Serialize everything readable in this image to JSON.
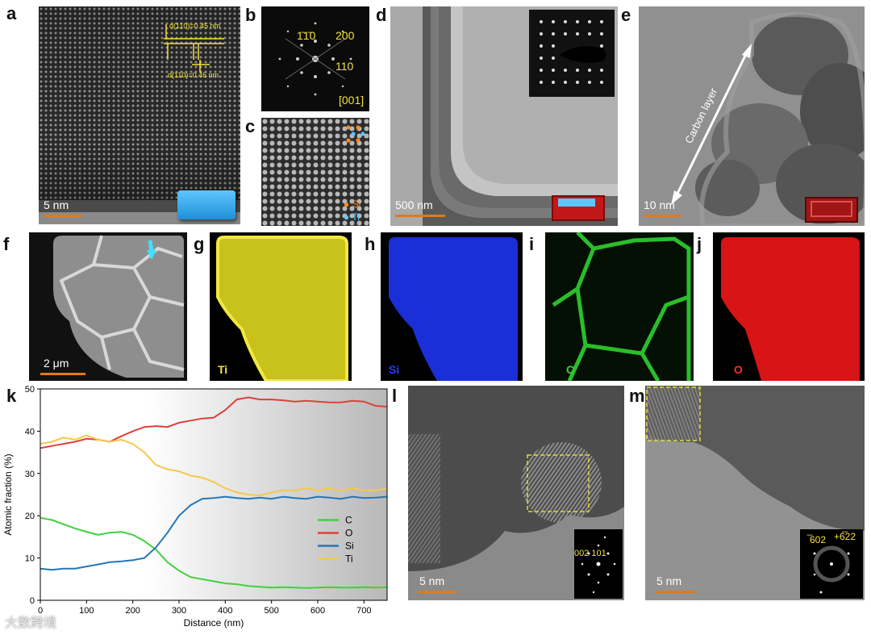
{
  "panels": {
    "a": {
      "label": "a",
      "scale": "5 nm",
      "d1": "d(110)=0.45 nm",
      "d2": "d(110)=0.46 nm"
    },
    "b": {
      "label": "b",
      "spot1": "1̄1̄0",
      "spot2": "200",
      "spot3": "110",
      "zone": "[001]"
    },
    "c": {
      "label": "c",
      "legend_si": "Si",
      "legend_ti": "Ti"
    },
    "d": {
      "label": "d",
      "scale": "500 nm"
    },
    "e": {
      "label": "e",
      "scale": "10 nm",
      "annotation": "Carbon layer"
    },
    "f": {
      "label": "f",
      "scale": "2 μm"
    },
    "g": {
      "label": "g",
      "element": "Ti"
    },
    "h": {
      "label": "h",
      "element": "Si"
    },
    "i": {
      "label": "i",
      "element": "C"
    },
    "j": {
      "label": "j",
      "element": "O"
    },
    "l": {
      "label": "l",
      "scale": "5 nm",
      "fft_label": "002 101"
    },
    "m": {
      "label": "m",
      "scale": "5 nm",
      "fft_label1": "̅602",
      "fft_label2": "+6̅22"
    }
  },
  "chart_label": "k",
  "watermark": "大数跨境",
  "colors": {
    "C": "#3ed13e",
    "O": "#e0403a",
    "Si": "#2577b5",
    "Ti": "#f5c84c",
    "scalebar": "#e07b1a"
  },
  "chart_data": {
    "type": "line",
    "xlabel": "Distance (nm)",
    "ylabel": "Atomic fraction (%)",
    "xlim": [
      0,
      750
    ],
    "ylim": [
      0,
      50
    ],
    "xticks": [
      0,
      100,
      200,
      300,
      400,
      500,
      600,
      700
    ],
    "yticks": [
      0,
      10,
      20,
      30,
      40,
      50
    ],
    "legend_position": "right-middle",
    "x": [
      0,
      25,
      50,
      75,
      100,
      125,
      150,
      175,
      200,
      225,
      250,
      275,
      300,
      325,
      350,
      375,
      400,
      425,
      450,
      475,
      500,
      525,
      550,
      575,
      600,
      625,
      650,
      675,
      700,
      725,
      750
    ],
    "series": [
      {
        "name": "C",
        "values": [
          19.5,
          19,
          18,
          17,
          16.2,
          15.5,
          16,
          16.2,
          15.5,
          14,
          12,
          9,
          7,
          5.5,
          5,
          4.5,
          4,
          3.8,
          3.4,
          3.2,
          3,
          3.1,
          3,
          2.9,
          3,
          3.1,
          3,
          3,
          3.1,
          3,
          3.1
        ]
      },
      {
        "name": "O",
        "values": [
          36,
          36.5,
          37,
          37.5,
          38.2,
          38,
          37.5,
          38.8,
          40,
          41,
          41.2,
          41,
          42,
          42.5,
          43,
          43.2,
          45,
          47.5,
          48,
          47.5,
          47.5,
          47.3,
          47,
          47.2,
          47,
          46.8,
          46.8,
          47.2,
          47,
          46,
          45.8
        ]
      },
      {
        "name": "Si",
        "values": [
          7.5,
          7.2,
          7.5,
          7.5,
          8,
          8.5,
          9,
          9.2,
          9.5,
          10,
          12.5,
          16,
          20,
          22.5,
          24,
          24.2,
          24.5,
          24.2,
          24,
          24.3,
          24,
          24.5,
          24.2,
          24,
          24.5,
          24.3,
          24,
          24.5,
          24.2,
          24.3,
          24.5
        ]
      },
      {
        "name": "Ti",
        "values": [
          37,
          37.5,
          38.5,
          38,
          39,
          38,
          37.5,
          38,
          37,
          35,
          32,
          31,
          30.5,
          29.5,
          29,
          28,
          26.5,
          25.5,
          25,
          24.8,
          25.5,
          26,
          26,
          26.5,
          26,
          26.5,
          26,
          26.5,
          26,
          26,
          26.5
        ]
      }
    ]
  }
}
